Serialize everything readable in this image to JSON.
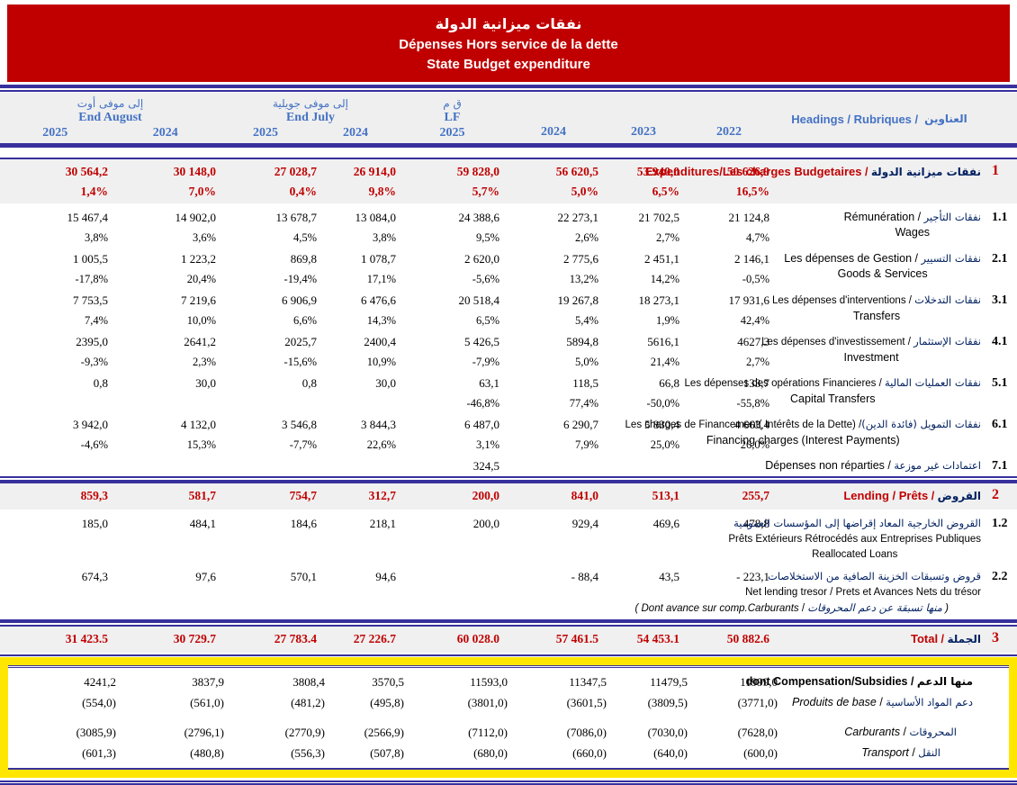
{
  "banner": {
    "title_ar": "نفقات ميزانية الدولة",
    "title_fr": "Dépenses Hors service de la dette",
    "title_en": "State Budget expenditure"
  },
  "colors": {
    "banner_red": "#C00000",
    "line_navy": "#37309C",
    "header_blue": "#4472C4",
    "arabic_navy": "#002060",
    "row_gray": "#F0F0F0",
    "highlight_yellow": "#FFE600"
  },
  "header": {
    "groups": [
      {
        "ar": "إلى موفى أوت",
        "en": "End August",
        "years": [
          "2025",
          "2024"
        ]
      },
      {
        "ar": "إلى موفى جويلية",
        "en": "End July",
        "years": [
          "2025",
          "2024"
        ]
      },
      {
        "ar": "ق م",
        "en": "LF",
        "years": [
          "2025"
        ]
      }
    ],
    "single_years": [
      "2024",
      "2023",
      "2022"
    ],
    "headings_en_fr": "Headings / Rubriques /",
    "headings_ar": "العناوين"
  },
  "sections": {
    "s1": {
      "rows": [
        {
          "num": "1",
          "kind": "section",
          "values": [
            "30 564,2",
            "30 148,0",
            "27 028,7",
            "26 914,0",
            "59 828,0",
            "56 620,5",
            "53 940,0",
            "50 626,9"
          ],
          "pcts": [
            "1,4%",
            "7,0%",
            "0,4%",
            "9,8%",
            "5,7%",
            "5,0%",
            "6,5%",
            "16,5%"
          ],
          "label_lines": [
            {
              "parts": [
                {
                  "s": "frb",
                  "t": "Expenditures/Les charges Budgetaires"
                },
                {
                  "s": "spr",
                  "t": "  /  "
                },
                {
                  "s": "arb",
                  "t": "نفقات ميزانية الدولة"
                }
              ]
            }
          ]
        },
        {
          "num": "1.1",
          "kind": "item",
          "values": [
            "15 467,4",
            "14 902,0",
            "13 678,7",
            "13 084,0",
            "24 388,6",
            "22 273,1",
            "21 702,5",
            "21 124,8"
          ],
          "pcts": [
            "3,8%",
            "3,6%",
            "4,5%",
            "3,8%",
            "9,5%",
            "2,6%",
            "2,7%",
            "4,7%"
          ],
          "label_lines": [
            {
              "parts": [
                {
                  "s": "fr",
                  "t": "Rémunération"
                },
                {
                  "s": "sp",
                  "t": "  /  "
                },
                {
                  "s": "ar",
                  "t": "نفقات التأجير"
                }
              ]
            },
            {
              "cls": "center",
              "parts": [
                {
                  "s": "en",
                  "t": "Wages"
                }
              ]
            }
          ]
        },
        {
          "num": "2.1",
          "kind": "item",
          "values": [
            "1 005,5",
            "1 223,2",
            "869,8",
            "1 078,7",
            "2 620,0",
            "2 775,6",
            "2 451,1",
            "2 146,1"
          ],
          "pcts": [
            "-17,8%",
            "20,4%",
            "-19,4%",
            "17,1%",
            "-5,6%",
            "13,2%",
            "14,2%",
            "-0,5%"
          ],
          "label_lines": [
            {
              "parts": [
                {
                  "s": "fr",
                  "t": "Les dépenses de Gestion"
                },
                {
                  "s": "sp",
                  "t": "  /  "
                },
                {
                  "s": "ar",
                  "t": "نفقات التسيير"
                }
              ]
            },
            {
              "cls": "center",
              "parts": [
                {
                  "s": "en",
                  "t": "Goods & Services"
                }
              ]
            }
          ]
        },
        {
          "num": "3.1",
          "kind": "item",
          "values": [
            "7 753,5",
            "7 219,6",
            "6 906,9",
            "6 476,6",
            "20 518,4",
            "19 267,8",
            "18 273,1",
            "17 931,6"
          ],
          "pcts": [
            "7,4%",
            "10,0%",
            "6,6%",
            "14,3%",
            "6,5%",
            "5,4%",
            "1,9%",
            "42,4%"
          ],
          "label_lines": [
            {
              "cls": "sm",
              "parts": [
                {
                  "s": "fr",
                  "t": "Les dépenses d'interventions"
                },
                {
                  "s": "sp",
                  "t": " / "
                },
                {
                  "s": "ar",
                  "t": "نفقات التدخلات"
                }
              ]
            },
            {
              "cls": "center",
              "parts": [
                {
                  "s": "en",
                  "t": "Transfers"
                }
              ]
            }
          ]
        },
        {
          "num": "4.1",
          "kind": "item",
          "values": [
            "2395,0",
            "2641,2",
            "2025,7",
            "2400,4",
            "5 426,5",
            "5894,8",
            "5616,1",
            "4627,3"
          ],
          "pcts": [
            "-9,3%",
            "2,3%",
            "-15,6%",
            "10,9%",
            "-7,9%",
            "5,0%",
            "21,4%",
            "2,7%"
          ],
          "label_lines": [
            {
              "cls": "sm",
              "parts": [
                {
                  "s": "fr",
                  "t": "Les dépenses d'investissement"
                },
                {
                  "s": "sp",
                  "t": " / "
                },
                {
                  "s": "ar",
                  "t": "نفقات الإستثمار"
                }
              ]
            },
            {
              "cls": "center",
              "parts": [
                {
                  "s": "en",
                  "t": "Investment"
                }
              ]
            }
          ]
        },
        {
          "num": "5.1",
          "kind": "item",
          "values": [
            "0,8",
            "30,0",
            "0,8",
            "30,0",
            "63,1",
            "118,5",
            "66,8",
            "133,7"
          ],
          "pcts": [
            "",
            "",
            "",
            "",
            "-46,8%",
            "77,4%",
            "-50,0%",
            "-55,8%"
          ],
          "label_lines": [
            {
              "cls": "sm",
              "parts": [
                {
                  "s": "fr",
                  "t": "Les dépenses des opérations Financieres"
                },
                {
                  "s": "sp",
                  "t": " / "
                },
                {
                  "s": "ar",
                  "t": "نفقات العمليات المالية"
                }
              ]
            },
            {
              "cls": "center",
              "parts": [
                {
                  "s": "en",
                  "t": "Capital Transfers"
                }
              ]
            }
          ]
        },
        {
          "num": "6.1",
          "kind": "item",
          "values": [
            "3 942,0",
            "4 132,0",
            "3 546,8",
            "3 844,3",
            "6 487,0",
            "6 290,7",
            "5 830,4",
            "4 663,4"
          ],
          "pcts": [
            "-4,6%",
            "15,3%",
            "-7,7%",
            "22,6%",
            "3,1%",
            "7,9%",
            "25,0%",
            "26,0%"
          ],
          "label_lines": [
            {
              "cls": "sm",
              "parts": [
                {
                  "s": "fr",
                  "t": "Les charges de Financement( Intérêts de la Dette)"
                },
                {
                  "s": "sp",
                  "t": " /"
                },
                {
                  "s": "ar",
                  "t": "نفقات التمويل (فائدة الدين)"
                }
              ]
            },
            {
              "cls": "center",
              "parts": [
                {
                  "s": "en",
                  "t": "Financing charges (Interest Payments)"
                }
              ]
            }
          ]
        },
        {
          "num": "7.1",
          "kind": "item",
          "values": [
            "",
            "",
            "",
            "",
            "324,5",
            "",
            "",
            ""
          ],
          "pcts": null,
          "label_lines": [
            {
              "parts": [
                {
                  "s": "fr",
                  "t": "Dépenses non réparties"
                },
                {
                  "s": "sp",
                  "t": " / "
                },
                {
                  "s": "ar",
                  "t": "اعتمادات غير موزعة"
                }
              ]
            }
          ]
        }
      ]
    },
    "s2": {
      "rows": [
        {
          "num": "2",
          "kind": "section",
          "values": [
            "859,3",
            "581,7",
            "754,7",
            "312,7",
            "200,0",
            "841,0",
            "513,1",
            "255,7"
          ],
          "pcts": null,
          "label_lines": [
            {
              "parts": [
                {
                  "s": "frb",
                  "t": "Lending / Prêts"
                },
                {
                  "s": "spr",
                  "t": " / "
                },
                {
                  "s": "arb",
                  "t": "القروض"
                }
              ]
            }
          ]
        },
        {
          "num": "1.2",
          "kind": "item",
          "values": [
            "185,0",
            "484,1",
            "184,6",
            "218,1",
            "200,0",
            "929,4",
            "469,6",
            "478,8"
          ],
          "pcts": null,
          "label_lines": [
            {
              "cls": "sm",
              "parts": [
                {
                  "s": "ar",
                  "t": "القروض الخارجية المعاد إقراضها إلى المؤسسات العمومية"
                }
              ]
            },
            {
              "cls": "sm",
              "parts": [
                {
                  "s": "fr",
                  "t": "Prêts Extérieurs Rétrocédés aux Entreprises Publiques"
                }
              ]
            },
            {
              "cls": "center sm",
              "parts": [
                {
                  "s": "en",
                  "t": "Reallocated Loans"
                }
              ]
            }
          ]
        },
        {
          "num": "2.2",
          "kind": "item",
          "values": [
            "674,3",
            "97,6",
            "570,1",
            "94,6",
            "",
            "- 88,4",
            "43,5",
            "- 223,1"
          ],
          "pcts": null,
          "label_lines": [
            {
              "cls": "sm",
              "parts": [
                {
                  "s": "ar",
                  "t": "قروض وتسبقات الخزينة الصافية من الاستخلاصات"
                }
              ]
            },
            {
              "cls": "sm",
              "parts": [
                {
                  "s": "fr",
                  "t": "Net lending tresor / Prets et Avances Nets du trésor"
                }
              ]
            },
            {
              "cls": "r2 sm",
              "parts": [
                {
                  "s": "it",
                  "t": "( Dont avance sur comp.Carburants"
                },
                {
                  "s": "sp",
                  "t": "   /   "
                },
                {
                  "s": "arit",
                  "t": "منها تسبقة عن دعم المحروقات"
                },
                {
                  "s": "it",
                  "t": " )"
                }
              ]
            }
          ]
        }
      ]
    },
    "s3": {
      "rows": [
        {
          "num": "3",
          "kind": "section",
          "values": [
            "31 423.5",
            "30 729.7",
            "27 783.4",
            "27 226.7",
            "60 028.0",
            "57 461.5",
            "54 453.1",
            "50 882.6"
          ],
          "pcts": null,
          "label_lines": [
            {
              "parts": [
                {
                  "s": "frb",
                  "t": "Total"
                },
                {
                  "s": "spr",
                  "t": "   /   "
                },
                {
                  "s": "arb",
                  "t": "الجملة"
                }
              ]
            }
          ]
        }
      ]
    },
    "subsidies": {
      "rows": [
        {
          "num": "",
          "id": "compensation",
          "kind": "sub",
          "values": [
            "4241,2",
            "3837,9",
            "3808,4",
            "3570,5",
            "11593,0",
            "11347,5",
            "11479,5",
            "11999,0"
          ],
          "pcts": null,
          "label_lines": [
            {
              "parts": [
                {
                  "s": "bb",
                  "t": "dont Compensation/Subsidies / "
                },
                {
                  "s": "arbb",
                  "t": "منها الدعم"
                }
              ]
            }
          ]
        },
        {
          "num": "",
          "id": "produits-de-base",
          "kind": "sub",
          "values": [
            "(554,0)",
            "(561,0)",
            "(481,2)",
            "(495,8)",
            "(3801,0)",
            "(3601,5)",
            "(3809,5)",
            "(3771,0)"
          ],
          "pcts": null,
          "label_lines": [
            {
              "parts": [
                {
                  "s": "it",
                  "t": "Produits de base"
                },
                {
                  "s": "sp",
                  "t": "  /  "
                },
                {
                  "s": "ar",
                  "t": "دعم المواد الأساسية"
                }
              ]
            }
          ]
        },
        {
          "num": "",
          "id": "carburants",
          "kind": "sub gap",
          "values": [
            "(3085,9)",
            "(2796,1)",
            "(2770,9)",
            "(2566,9)",
            "(7112,0)",
            "(7086,0)",
            "(7030,0)",
            "(7628,0)"
          ],
          "pcts": null,
          "label_lines": [
            {
              "cls": "r1",
              "parts": [
                {
                  "s": "it",
                  "t": "Carburants"
                },
                {
                  "s": "sp",
                  "t": "  /  "
                },
                {
                  "s": "ar",
                  "t": "المحروقات"
                }
              ]
            }
          ]
        },
        {
          "num": "",
          "id": "transport",
          "kind": "sub",
          "values": [
            "(601,3)",
            "(480,8)",
            "(556,3)",
            "(507,8)",
            "(680,0)",
            "(660,0)",
            "(640,0)",
            "(600,0)"
          ],
          "pcts": null,
          "label_lines": [
            {
              "cls": "r2",
              "parts": [
                {
                  "s": "it",
                  "t": "Transport"
                },
                {
                  "s": "sp",
                  "t": "   /   "
                },
                {
                  "s": "ar",
                  "t": "النقل"
                }
              ]
            }
          ]
        }
      ]
    }
  }
}
